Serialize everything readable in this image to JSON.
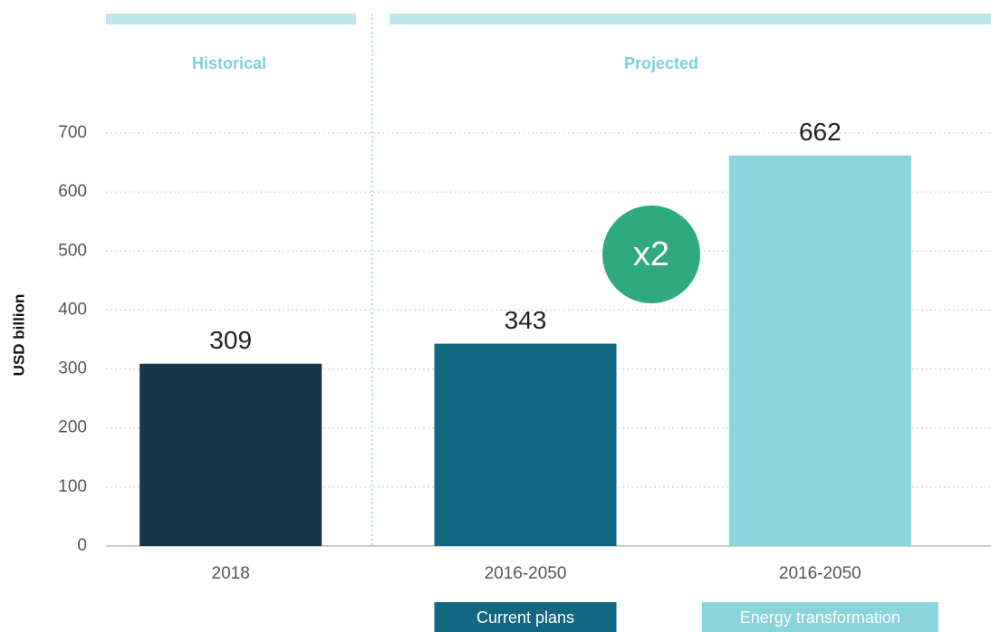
{
  "chart_data": {
    "type": "bar",
    "y_label": "USD billion",
    "categories": [
      "2018",
      "2016-2050",
      "2016-2050"
    ],
    "values": [
      309,
      343,
      662
    ],
    "colors": [
      "#14364a",
      "#126782",
      "#8ad4dc"
    ],
    "ylim": [
      0,
      700
    ],
    "yticks": [
      0,
      100,
      200,
      300,
      400,
      500,
      600,
      700
    ],
    "grid": true,
    "sections": [
      "Historical",
      "Projected"
    ],
    "legend": [
      "Current plans",
      "Energy transformation"
    ],
    "annotation": "x2"
  }
}
